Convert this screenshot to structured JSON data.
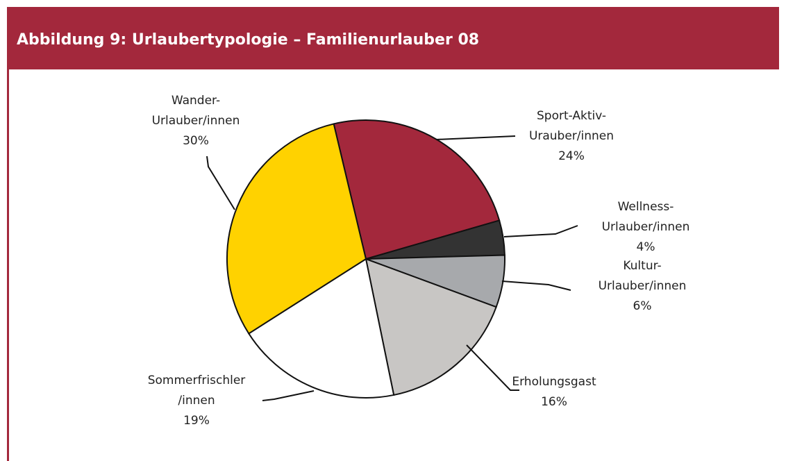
{
  "chart_data": {
    "type": "pie",
    "title": "Abbildung 9: Urlaubertypologie – Familienurlauber 08",
    "categories": [
      [
        "Sport-Aktiv-",
        "Urauber/innen"
      ],
      [
        "Wellness-",
        "Urlauber/innen"
      ],
      [
        "Kultur-",
        "Urlauber/innen"
      ],
      [
        "Erholungsgast"
      ],
      [
        "Sommerfrischler",
        "/innen"
      ],
      [
        "Wander-",
        "Urlauber/innen"
      ]
    ],
    "values": [
      24,
      4,
      6,
      16,
      19,
      30
    ],
    "value_labels": [
      "24%",
      "4%",
      "6%",
      "16%",
      "19%",
      "30%"
    ],
    "colors": [
      "#a3283c",
      "#333333",
      "#a7a9ac",
      "#c8c6c4",
      "#ffffff",
      "#ffd200"
    ]
  }
}
